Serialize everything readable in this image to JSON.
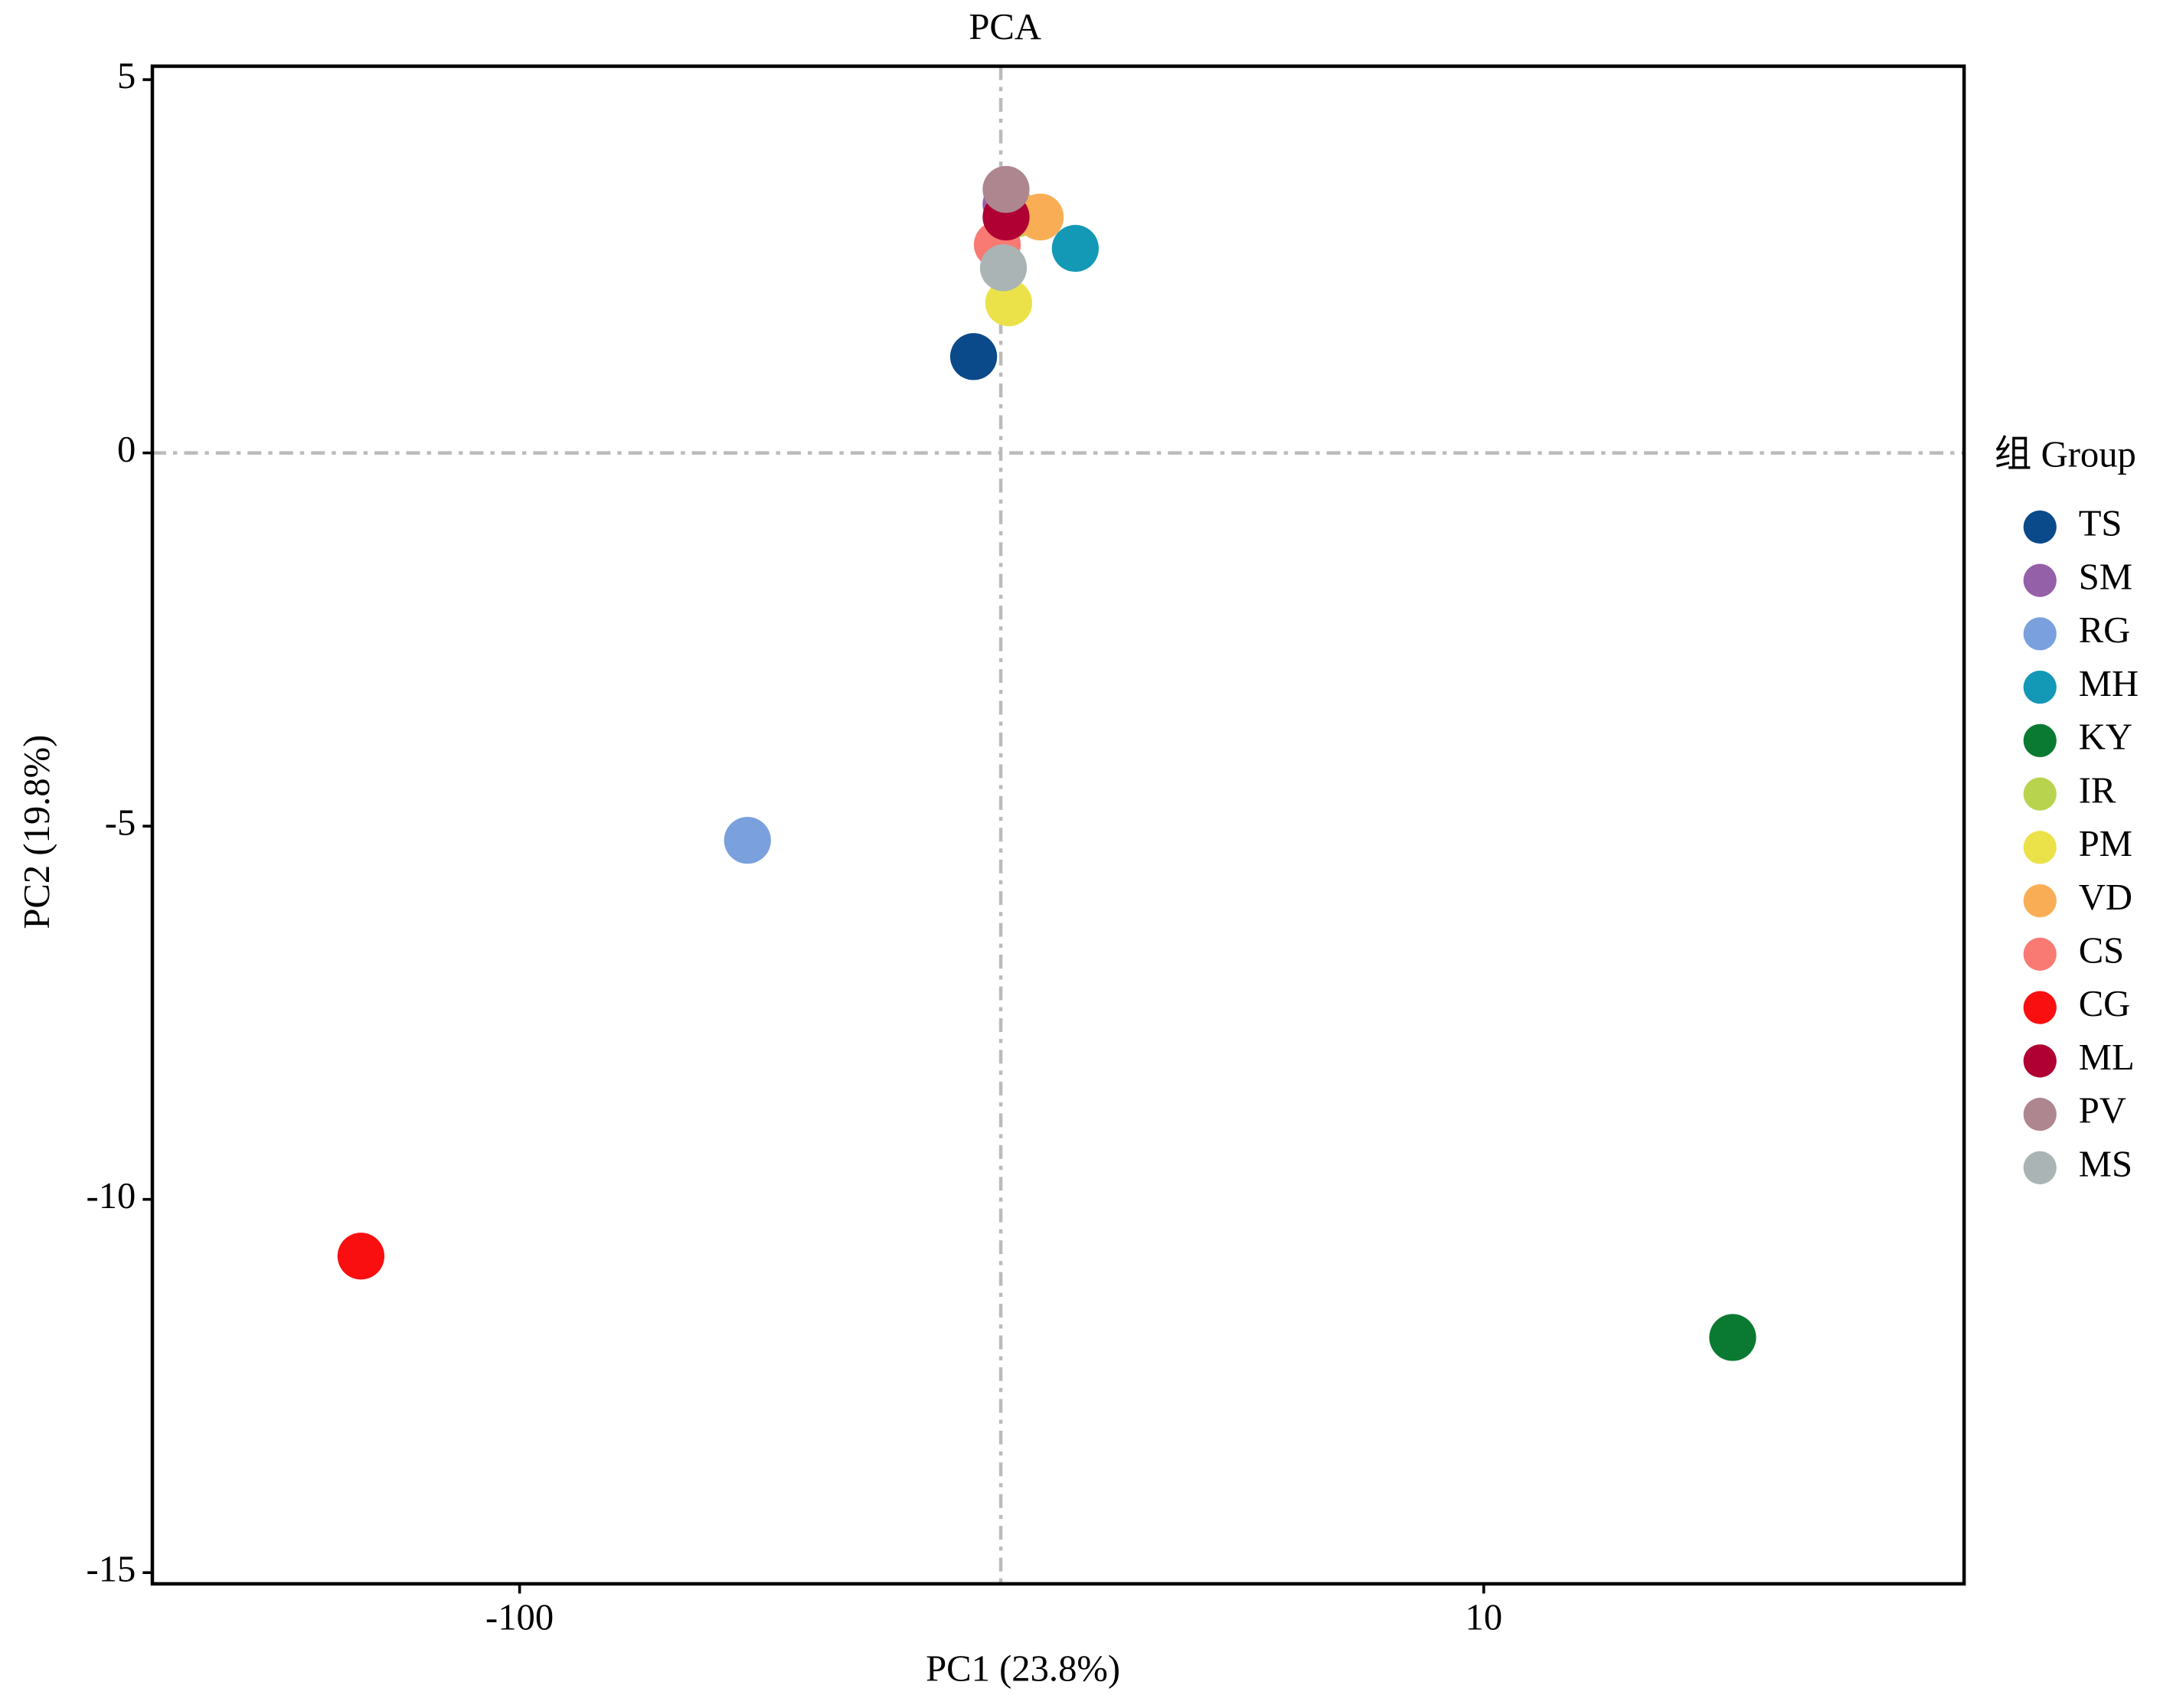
{
  "chart_data": {
    "type": "scatter",
    "title": "PCA",
    "x_label": "PC1 (23.8%)",
    "y_label": "PC2 (19.8%)",
    "legend_title": "组 Group",
    "legend": "right",
    "xlim": [
      -141.9,
      64.8
    ],
    "ylim": [
      -15.15,
      5.18
    ],
    "xticks": [
      -100,
      10
    ],
    "yticks": [
      5,
      0,
      -5,
      -10,
      -15
    ],
    "reference_lines": {
      "x": -45.1,
      "y": 0
    },
    "series": [
      {
        "name": "TS",
        "color": "#0b4a8a",
        "x": [
          -48.2
        ],
        "values": [
          1.29
        ]
      },
      {
        "name": "SM",
        "color": "#9460a8",
        "x": [
          -44.5
        ],
        "values": [
          3.33
        ]
      },
      {
        "name": "RG",
        "color": "#7aa0de",
        "x": [
          -74.0
        ],
        "values": [
          -5.19
        ]
      },
      {
        "name": "MH",
        "color": "#1399b5",
        "x": [
          -36.6
        ],
        "values": [
          2.74
        ]
      },
      {
        "name": "KY",
        "color": "#0a7a32",
        "x": [
          38.4
        ],
        "values": [
          -11.85
        ]
      },
      {
        "name": "IR",
        "color": "#b8d44f",
        "x": [
          -43.3
        ],
        "values": [
          3.2
        ]
      },
      {
        "name": "PM",
        "color": "#ebe24a",
        "x": [
          -44.2
        ],
        "values": [
          2.01
        ]
      },
      {
        "name": "VD",
        "color": "#f9ae55",
        "x": [
          -40.6
        ],
        "values": [
          3.16
        ]
      },
      {
        "name": "CS",
        "color": "#f87a72",
        "x": [
          -45.5
        ],
        "values": [
          2.79
        ]
      },
      {
        "name": "CG",
        "color": "#f90f0f",
        "x": [
          -118.1
        ],
        "values": [
          -10.76
        ]
      },
      {
        "name": "ML",
        "color": "#b00033",
        "x": [
          -44.5
        ],
        "values": [
          3.16
        ]
      },
      {
        "name": "PV",
        "color": "#ae8690",
        "x": [
          -44.5
        ],
        "values": [
          3.53
        ]
      },
      {
        "name": "MS",
        "color": "#aab4b5",
        "x": [
          -44.8
        ],
        "values": [
          2.48
        ]
      }
    ]
  }
}
